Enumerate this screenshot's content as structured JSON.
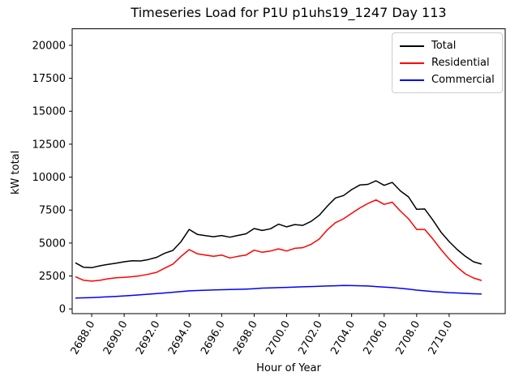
{
  "title": "Timeseries Load for P1U p1uhs19_1247  Day 113",
  "chart_data": {
    "type": "line",
    "title": "Timeseries Load for P1U p1uhs19_1247  Day 113",
    "xlabel": "Hour of Year",
    "ylabel": "kW total",
    "xlim": [
      2686.8,
      2713.45
    ],
    "ylim": [
      -355,
      21255
    ],
    "grid": false,
    "legend_position": "upper right",
    "x_ticks": [
      {
        "value": 2688,
        "label": "2688.0"
      },
      {
        "value": 2690,
        "label": "2690.0"
      },
      {
        "value": 2692,
        "label": "2692.0"
      },
      {
        "value": 2694,
        "label": "2694.0"
      },
      {
        "value": 2696,
        "label": "2696.0"
      },
      {
        "value": 2698,
        "label": "2698.0"
      },
      {
        "value": 2700,
        "label": "2700.0"
      },
      {
        "value": 2702,
        "label": "2702.0"
      },
      {
        "value": 2704,
        "label": "2704.0"
      },
      {
        "value": 2706,
        "label": "2706.0"
      },
      {
        "value": 2708,
        "label": "2708.0"
      },
      {
        "value": 2710,
        "label": "2710.0"
      }
    ],
    "y_ticks": [
      {
        "value": 0,
        "label": "0"
      },
      {
        "value": 2500,
        "label": "2500"
      },
      {
        "value": 5000,
        "label": "5000"
      },
      {
        "value": 7500,
        "label": "7500"
      },
      {
        "value": 10000,
        "label": "10000"
      },
      {
        "value": 12500,
        "label": "12500"
      },
      {
        "value": 15000,
        "label": "15000"
      },
      {
        "value": 17500,
        "label": "17500"
      },
      {
        "value": 20000,
        "label": "20000"
      }
    ],
    "x": [
      2687,
      2687.5,
      2688,
      2688.5,
      2689,
      2689.5,
      2690,
      2690.5,
      2691,
      2691.5,
      2692,
      2692.5,
      2693,
      2693.5,
      2694,
      2694.5,
      2695,
      2695.5,
      2696,
      2696.5,
      2697,
      2697.5,
      2698,
      2698.5,
      2699,
      2699.5,
      2700,
      2700.5,
      2701,
      2701.5,
      2702,
      2702.5,
      2703,
      2703.5,
      2704,
      2704.5,
      2705,
      2705.5,
      2706,
      2706.5,
      2707,
      2707.5,
      2708,
      2708.5,
      2709,
      2709.5,
      2710,
      2710.5,
      2711,
      2711.5,
      2712
    ],
    "series": [
      {
        "name": "Total",
        "color": "#000000",
        "values": [
          3500,
          3160,
          3130,
          3270,
          3380,
          3470,
          3580,
          3660,
          3640,
          3750,
          3920,
          4230,
          4440,
          5110,
          6030,
          5660,
          5560,
          5480,
          5570,
          5440,
          5580,
          5700,
          6100,
          5950,
          6080,
          6430,
          6230,
          6400,
          6340,
          6640,
          7100,
          7800,
          8420,
          8600,
          9050,
          9400,
          9450,
          9720,
          9380,
          9600,
          8950,
          8500,
          7560,
          7580,
          6740,
          5820,
          5110,
          4500,
          3990,
          3580,
          3400
        ]
      },
      {
        "name": "Residential",
        "color": "#ff0000",
        "values": [
          2450,
          2180,
          2110,
          2170,
          2290,
          2360,
          2400,
          2450,
          2520,
          2640,
          2780,
          3100,
          3400,
          3990,
          4500,
          4190,
          4090,
          3990,
          4090,
          3870,
          3990,
          4090,
          4460,
          4300,
          4400,
          4560,
          4400,
          4600,
          4650,
          4900,
          5300,
          6000,
          6540,
          6840,
          7250,
          7660,
          8000,
          8270,
          7930,
          8100,
          7420,
          6840,
          6030,
          6030,
          5310,
          4500,
          3780,
          3170,
          2660,
          2350,
          2160
        ]
      },
      {
        "name": "Commercial",
        "color": "#0000ff",
        "values": [
          830,
          845,
          865,
          890,
          920,
          955,
          990,
          1030,
          1075,
          1120,
          1165,
          1215,
          1265,
          1320,
          1370,
          1400,
          1420,
          1440,
          1460,
          1470,
          1490,
          1510,
          1540,
          1580,
          1600,
          1620,
          1640,
          1660,
          1680,
          1700,
          1720,
          1740,
          1760,
          1780,
          1775,
          1760,
          1740,
          1700,
          1660,
          1620,
          1570,
          1510,
          1430,
          1370,
          1320,
          1280,
          1240,
          1210,
          1180,
          1150,
          1130
        ]
      }
    ]
  }
}
